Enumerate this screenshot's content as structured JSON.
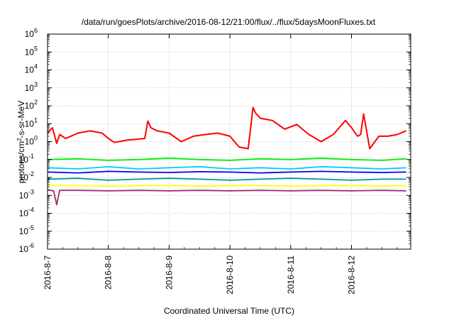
{
  "chart_data": {
    "type": "line",
    "title": "/data/run/goesPlots/archive/2016-08-12/21:00/flux/../flux/5daysMoonFluxes.txt",
    "xlabel": "Coordinated Universal Time (UTC)",
    "ylabel_parts": {
      "base": "protons/cm",
      "sup": "2",
      "rest": "-s-sr-MeV"
    },
    "x_ticks": [
      "2016-8-7",
      "2016-8-8",
      "2016-8-9",
      "2016-8-10",
      "2016-8-11",
      "2016-8-12"
    ],
    "xlim_days": [
      0,
      5.9
    ],
    "y_scale": "log",
    "ylim": [
      1e-06,
      1000000.0
    ],
    "y_ticks": [
      {
        "base": "10",
        "exp": "6"
      },
      {
        "base": "10",
        "exp": "5"
      },
      {
        "base": "10",
        "exp": "4"
      },
      {
        "base": "10",
        "exp": "3"
      },
      {
        "base": "10",
        "exp": "2"
      },
      {
        "base": "10",
        "exp": "1"
      },
      {
        "base": "10",
        "exp": "0"
      },
      {
        "base": "10",
        "exp": "-1"
      },
      {
        "base": "10",
        "exp": "-2"
      },
      {
        "base": "10",
        "exp": "-3"
      },
      {
        "base": "10",
        "exp": "-4"
      },
      {
        "base": "10",
        "exp": "-5"
      },
      {
        "base": "10",
        "exp": "-6"
      }
    ],
    "grid": true,
    "legend": "none",
    "series": [
      {
        "color": "#ff0000",
        "x": [
          0,
          0.08,
          0.15,
          0.2,
          0.3,
          0.5,
          0.7,
          0.9,
          1.0,
          1.1,
          1.3,
          1.6,
          1.65,
          1.7,
          1.8,
          2.0,
          2.2,
          2.4,
          2.6,
          2.8,
          3.0,
          3.15,
          3.3,
          3.38,
          3.42,
          3.5,
          3.7,
          3.9,
          4.1,
          4.3,
          4.5,
          4.7,
          4.9,
          5.0,
          5.1,
          5.15,
          5.2,
          5.3,
          5.45,
          5.6,
          5.75,
          5.9
        ],
        "y": [
          3,
          6,
          0.8,
          2.5,
          1.5,
          3,
          4,
          3,
          1.5,
          0.9,
          1.2,
          1.5,
          14,
          6,
          4,
          3,
          1,
          2,
          2.5,
          3,
          2,
          0.5,
          0.4,
          80,
          40,
          20,
          15,
          5,
          9,
          2.5,
          1,
          2.5,
          15,
          6,
          2,
          2.5,
          35,
          0.4,
          2,
          2,
          2.5,
          4
        ]
      },
      {
        "color": "#00ee00",
        "x": [
          0,
          0.5,
          1.0,
          1.5,
          2.0,
          2.5,
          3.0,
          3.5,
          4.0,
          4.5,
          5.0,
          5.5,
          5.9
        ],
        "y": [
          0.1,
          0.11,
          0.09,
          0.1,
          0.12,
          0.1,
          0.09,
          0.11,
          0.1,
          0.12,
          0.1,
          0.09,
          0.11
        ]
      },
      {
        "color": "#00ccff",
        "x": [
          0,
          0.5,
          1.0,
          1.5,
          2.0,
          2.5,
          3.0,
          3.5,
          4.0,
          4.5,
          5.0,
          5.5,
          5.9
        ],
        "y": [
          0.035,
          0.03,
          0.04,
          0.03,
          0.035,
          0.04,
          0.03,
          0.035,
          0.03,
          0.04,
          0.035,
          0.03,
          0.035
        ]
      },
      {
        "color": "#0000ff",
        "x": [
          0,
          0.5,
          1.0,
          1.5,
          2.0,
          2.5,
          3.0,
          3.5,
          4.0,
          4.5,
          5.0,
          5.5,
          5.9
        ],
        "y": [
          0.02,
          0.018,
          0.022,
          0.02,
          0.019,
          0.021,
          0.02,
          0.018,
          0.02,
          0.022,
          0.02,
          0.019,
          0.02
        ]
      },
      {
        "color": "#009999",
        "x": [
          0,
          0.5,
          1.0,
          1.5,
          2.0,
          2.5,
          3.0,
          3.5,
          4.0,
          4.5,
          5.0,
          5.5,
          5.9
        ],
        "y": [
          0.008,
          0.009,
          0.007,
          0.008,
          0.009,
          0.008,
          0.007,
          0.008,
          0.009,
          0.008,
          0.007,
          0.008,
          0.008
        ]
      },
      {
        "color": "#ffff00",
        "x": [
          0,
          0.5,
          1.0,
          1.5,
          2.0,
          2.5,
          3.0,
          3.5,
          4.0,
          4.5,
          5.0,
          5.5,
          5.9
        ],
        "y": [
          0.0035,
          0.0035,
          0.0034,
          0.0035,
          0.0035,
          0.0034,
          0.0035,
          0.0035,
          0.0034,
          0.0035,
          0.0035,
          0.0034,
          0.0035
        ]
      },
      {
        "color": "#993366",
        "x": [
          0,
          0.1,
          0.15,
          0.2,
          0.5,
          1.0,
          1.5,
          2.0,
          2.5,
          3.0,
          3.5,
          4.0,
          4.5,
          5.0,
          5.5,
          5.9
        ],
        "y": [
          0.002,
          0.0018,
          0.0003,
          0.0019,
          0.0019,
          0.0018,
          0.0019,
          0.0018,
          0.0019,
          0.0018,
          0.0019,
          0.0018,
          0.0019,
          0.0018,
          0.0019,
          0.0018
        ]
      }
    ]
  }
}
